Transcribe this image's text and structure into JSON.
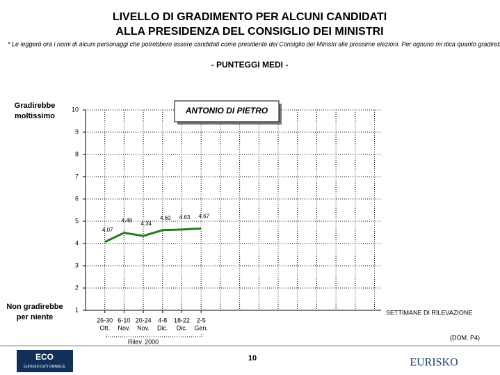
{
  "chart_data": {
    "type": "line",
    "title": [
      "LIVELLO DI GRADIMENTO PER ALCUNI CANDIDATI",
      "ALLA PRESIDENZA DEL CONSIGLIO DEI MINISTRI"
    ],
    "note": "* Le leggerò ora i nomi di alcuni personaggi che potrebbero essere candidati come presidente del Consiglio dei Ministri alle prossime elezioni. Per ognuno mi dica quanto gradirebbe che diventasse presidente del Consiglio",
    "subtitle": "- PUNTEGGI MEDI -",
    "y_top_label": [
      "Gradirebbe",
      "moltissimo"
    ],
    "y_bottom_label": [
      "Non gradirebbe",
      "per niente"
    ],
    "x_label": "SETTIMANE DI RILEVAZIONE",
    "x_group_label": "Rilev. 2000",
    "categories": [
      "26-30",
      "6-10",
      "20-24",
      "4-8",
      "18-22",
      "2-5"
    ],
    "category_months": [
      "Ott.",
      "Nov.",
      "Nov.",
      "Dic.",
      "Dic.",
      "Gen."
    ],
    "series": [
      {
        "name": "ANTONIO DI PIETRO",
        "color": "#1e7d1e",
        "values": [
          4.07,
          4.48,
          4.34,
          4.6,
          4.63,
          4.67
        ],
        "value_labels": [
          "4.07",
          "4.48",
          "4.34",
          "4.60",
          "4.63",
          "4.67"
        ]
      }
    ],
    "ylim": [
      1,
      10
    ],
    "yticks": [
      1,
      2,
      3,
      4,
      5,
      6,
      7,
      8,
      9,
      10
    ],
    "grid": true
  },
  "page": {
    "source": "(DOM. P4)",
    "page_number": "10",
    "logo_left": "ECO",
    "logo_left_sub": "EURISKO DATI OMNIBUS",
    "logo_right": "EURISKO"
  }
}
